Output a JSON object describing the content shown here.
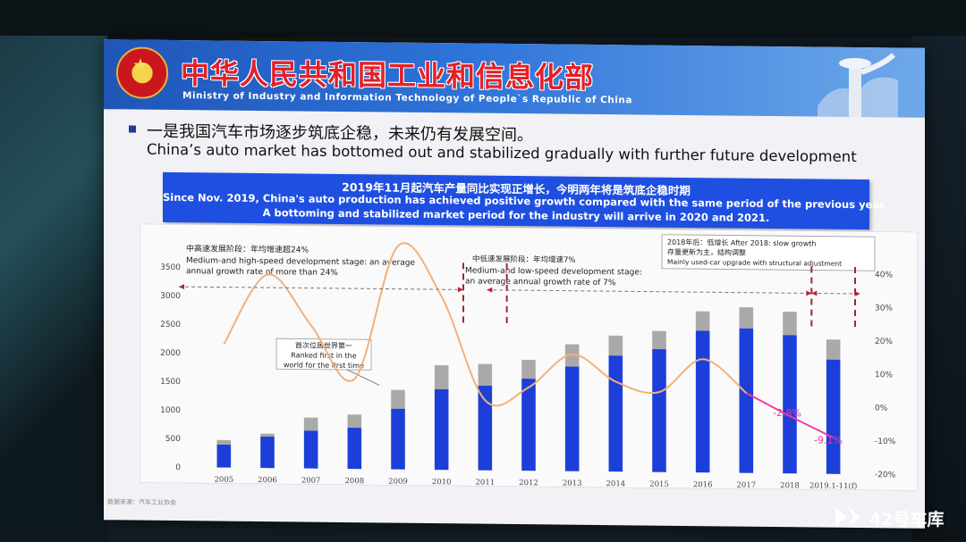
{
  "header": {
    "ministry_cn": "中华人民共和国工业和信息化部",
    "ministry_en": "Ministry of Industry and Information Technology of People`s Republic of China"
  },
  "bullet": {
    "cn": "一是我国汽车市场逐步筑底企稳，未来仍有发展空间。",
    "en": "China’s auto market has bottomed out and stabilized gradually with further future development"
  },
  "highlight": {
    "line1": "2019年11月起汽车产量同比实现正增长，今明两年将是筑底企稳时期",
    "line2": "Since Nov. 2019, China's auto production has achieved positive growth compared with the same period of the previous year.",
    "line3": "A bottoming and stabilized market period for the industry will arrive in 2020 and 2021."
  },
  "source": "数据来源：汽车工业协会",
  "watermark": "42号车库",
  "chart_data": {
    "type": "bar",
    "categories": [
      "2005",
      "2006",
      "2007",
      "2008",
      "2009",
      "2010",
      "2011",
      "2012",
      "2013",
      "2014",
      "2015",
      "2016",
      "2017",
      "2018",
      "2019.1-11(f)"
    ],
    "series": [
      {
        "kind": "bar",
        "values": [
          400,
          550,
          660,
          720,
          1060,
          1410,
          1480,
          1610,
          1830,
          2030,
          2150,
          2480,
          2530,
          2420,
          2000
        ]
      },
      {
        "kind": "bar-top",
        "values": [
          480,
          600,
          890,
          950,
          1390,
          1830,
          1860,
          1940,
          2220,
          2380,
          2470,
          2820,
          2900,
          2830,
          2350
        ]
      },
      {
        "kind": "growth-line",
        "axis": "right",
        "values": [
          17,
          38,
          23,
          7,
          47,
          32,
          1,
          5,
          15,
          7,
          4,
          14,
          4,
          -2.8,
          -9.1
        ]
      }
    ],
    "ylim": [
      0,
      3500
    ],
    "yticks": [
      0,
      500,
      1000,
      1500,
      2000,
      2500,
      3000,
      3500
    ],
    "y2lim": [
      -20,
      40
    ],
    "y2ticks": [
      "-20%",
      "-10%",
      "0%",
      "10%",
      "20%",
      "30%",
      "40%"
    ],
    "legend": "none",
    "grid": false,
    "annotations": {
      "stage1_cn": "中高速发展阶段：年均增速超24%",
      "stage1_en_1": "Medium-and high-speed development stage: an average",
      "stage1_en_2": "annual growth rate of more than 24%",
      "stage2_cn": "中低速发展阶段：年均增速7%",
      "stage2_en_1": "Medium-and low-speed development stage:",
      "stage2_en_2": "an average annual growth rate of 7%",
      "stage3_1": "2018年后：低增长  After 2018: slow growth",
      "stage3_2": "存量更新为主，结构调整",
      "stage3_3": "Mainly used-car upgrade with structural adjustment",
      "rank_cn": "首次位居世界第一",
      "rank_en_1": "Ranked first in the",
      "rank_en_2": "world for the first time",
      "label_2018": "-2.8%",
      "label_2019": "-9.1%"
    },
    "colors": {
      "bar": "#1c3fd9",
      "bar_top": "#a9a9a9",
      "line": "#f2b07a",
      "decline": "#ef3aa0",
      "divider": "#a8203a"
    }
  }
}
